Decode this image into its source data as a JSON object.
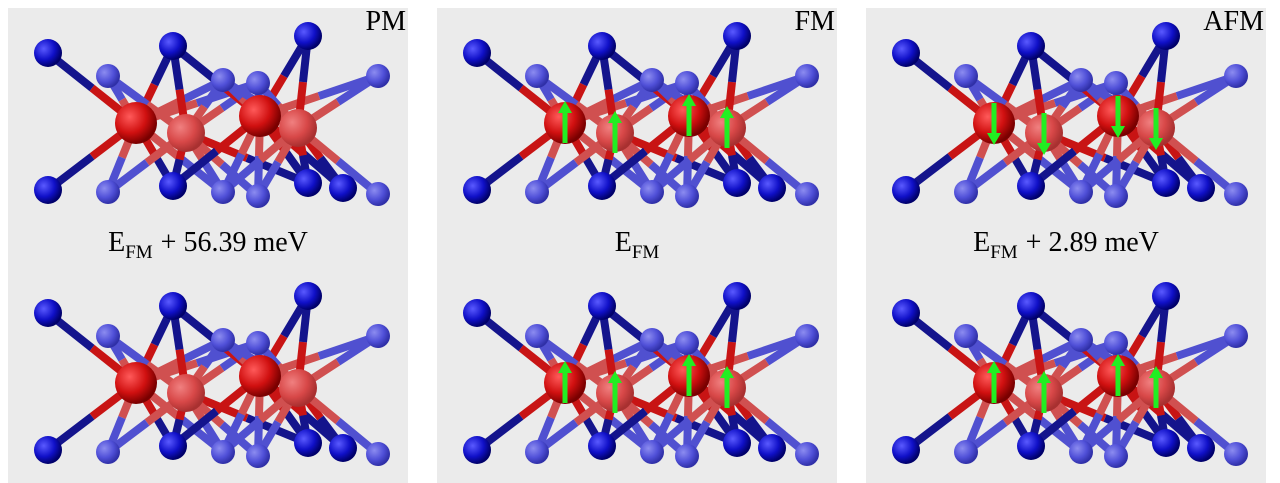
{
  "panels": [
    {
      "label": "PM",
      "energy": {
        "base": "E",
        "sub": "FM",
        "rest": "+ 56.39 meV"
      }
    },
    {
      "label": "FM",
      "energy": {
        "base": "E",
        "sub": "FM",
        "rest": ""
      }
    },
    {
      "label": "AFM",
      "energy": {
        "base": "E",
        "sub": "FM",
        "rest": "+ 2.89 meV"
      }
    }
  ]
}
